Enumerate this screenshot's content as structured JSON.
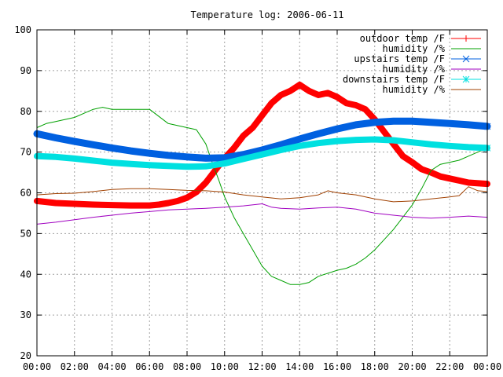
{
  "chart_data": {
    "type": "line",
    "title": "Temperature log: 2006-06-11",
    "xlabel": "",
    "ylabel": "",
    "x_unit": "hours",
    "xlim": [
      0,
      24
    ],
    "ylim": [
      20,
      100
    ],
    "x_ticks": [
      0,
      2,
      4,
      6,
      8,
      10,
      12,
      14,
      16,
      18,
      20,
      22,
      24
    ],
    "x_tick_labels": [
      "00:00",
      "02:00",
      "04:00",
      "06:00",
      "08:00",
      "10:00",
      "12:00",
      "14:00",
      "16:00",
      "18:00",
      "20:00",
      "22:00",
      "00:00"
    ],
    "y_ticks": [
      20,
      30,
      40,
      50,
      60,
      70,
      80,
      90,
      100
    ],
    "y_tick_labels": [
      "20",
      "30",
      "40",
      "50",
      "60",
      "70",
      "80",
      "90",
      "100"
    ],
    "grid": true,
    "legend_position": "top-right",
    "series": [
      {
        "name": "outdoor temp /F",
        "color": "#ff0000",
        "marker": "plus",
        "x": [
          0,
          1,
          2,
          3,
          4,
          5,
          6,
          6.5,
          7,
          7.5,
          8,
          8.5,
          9,
          9.5,
          10,
          10.5,
          11,
          11.5,
          12,
          12.5,
          13,
          13.5,
          14,
          14.5,
          15,
          15.5,
          16,
          16.5,
          17,
          17.5,
          18,
          18.5,
          19,
          19.5,
          20,
          20.5,
          21,
          21.5,
          22,
          22.5,
          23,
          24
        ],
        "y": [
          58,
          57.5,
          57.3,
          57.1,
          57.0,
          56.9,
          56.9,
          57.1,
          57.5,
          58.0,
          58.8,
          60.2,
          62.5,
          65.5,
          68.5,
          71.0,
          74.0,
          76.0,
          79.0,
          82.0,
          84.0,
          85.0,
          86.5,
          85.0,
          84.0,
          84.5,
          83.5,
          82.0,
          81.5,
          80.5,
          78.0,
          75.0,
          72.0,
          69.0,
          67.5,
          65.8,
          65.0,
          64.0,
          63.5,
          63.0,
          62.5,
          62.2
        ]
      },
      {
        "name": "humidity /%",
        "color": "#00a000",
        "marker": "none",
        "x": [
          0,
          0.5,
          1,
          1.5,
          2,
          2.5,
          3,
          3.5,
          4,
          5,
          6,
          7,
          7.5,
          8,
          8.5,
          9,
          9.3,
          9.7,
          10,
          10.5,
          11,
          11.5,
          12,
          12.5,
          13,
          13.5,
          14,
          14.5,
          15,
          16,
          16.5,
          17,
          17.5,
          18,
          18.5,
          19,
          19.5,
          20,
          20.5,
          21,
          21.5,
          22,
          22.5,
          23,
          23.5,
          24
        ],
        "y": [
          76.0,
          77.0,
          77.5,
          78.0,
          78.5,
          79.5,
          80.5,
          81.0,
          80.5,
          80.5,
          80.5,
          77.0,
          76.5,
          76.0,
          75.5,
          72.0,
          68.0,
          63.0,
          59.0,
          54.0,
          50.0,
          46.0,
          42.0,
          39.5,
          38.5,
          37.5,
          37.5,
          38.0,
          39.5,
          41.0,
          41.5,
          42.5,
          44.0,
          46.0,
          48.5,
          51.0,
          54.0,
          57.0,
          61.0,
          65.5,
          67.0,
          67.5,
          68.0,
          69.0,
          70.0,
          71.0
        ]
      },
      {
        "name": "upstairs temp /F",
        "color": "#0060e0",
        "marker": "cross",
        "x": [
          0,
          1,
          2,
          3,
          4,
          5,
          6,
          7,
          8,
          9,
          10,
          11,
          12,
          13,
          14,
          15,
          16,
          17,
          18,
          19,
          20,
          21,
          22,
          23,
          24
        ],
        "y": [
          74.5,
          73.5,
          72.6,
          71.8,
          71.0,
          70.3,
          69.7,
          69.2,
          68.8,
          68.5,
          68.6,
          69.4,
          70.5,
          71.8,
          73.2,
          74.5,
          75.7,
          76.7,
          77.3,
          77.6,
          77.6,
          77.3,
          77.0,
          76.7,
          76.3
        ]
      },
      {
        "name": "humidity /%",
        "color": "#a000c0",
        "marker": "none",
        "x": [
          0,
          1,
          2,
          3,
          4,
          5,
          6,
          7,
          8,
          9,
          10,
          11,
          12,
          12.5,
          13,
          14,
          15,
          16,
          17,
          18,
          19,
          20,
          21,
          22,
          23,
          24
        ],
        "y": [
          52.3,
          52.8,
          53.4,
          54.0,
          54.5,
          55.0,
          55.4,
          55.8,
          56.0,
          56.2,
          56.5,
          56.8,
          57.3,
          56.5,
          56.2,
          56.0,
          56.3,
          56.5,
          56.0,
          55.0,
          54.5,
          54.0,
          53.8,
          54.0,
          54.3,
          54.0
        ]
      },
      {
        "name": "downstairs temp /F",
        "color": "#00e0e0",
        "marker": "star",
        "x": [
          0,
          1,
          2,
          3,
          4,
          5,
          6,
          7,
          8,
          9,
          10,
          11,
          12,
          13,
          14,
          15,
          16,
          17,
          18,
          19,
          20,
          21,
          22,
          23,
          24
        ],
        "y": [
          69.0,
          68.8,
          68.4,
          67.9,
          67.4,
          67.1,
          66.8,
          66.6,
          66.4,
          66.5,
          67.2,
          68.3,
          69.4,
          70.5,
          71.5,
          72.2,
          72.7,
          73.0,
          73.1,
          72.9,
          72.4,
          71.9,
          71.5,
          71.2,
          71.0
        ]
      },
      {
        "name": "humidity /%",
        "color": "#a04000",
        "marker": "none",
        "x": [
          0,
          1,
          2,
          3,
          4,
          5,
          6,
          7,
          8,
          9,
          10,
          11,
          12,
          13,
          14,
          15,
          15.5,
          16,
          17,
          18,
          19,
          20,
          21,
          22,
          22.5,
          23,
          23.5,
          24
        ],
        "y": [
          59.5,
          59.8,
          59.9,
          60.3,
          60.8,
          61.0,
          61.0,
          60.8,
          60.6,
          60.5,
          60.2,
          59.5,
          59.0,
          58.5,
          58.8,
          59.5,
          60.5,
          60.0,
          59.5,
          58.5,
          57.8,
          58.0,
          58.5,
          59.0,
          59.3,
          61.5,
          60.5,
          60.3
        ]
      }
    ]
  }
}
